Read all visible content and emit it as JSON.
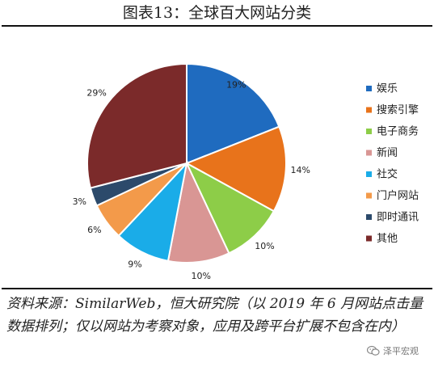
{
  "header": {
    "title": "图表13：全球百大网站分类"
  },
  "chart_data": {
    "type": "pie",
    "title": "图表13：全球百大网站分类",
    "slices": [
      {
        "label": "娱乐",
        "value": 19,
        "color": "#1f6bbf"
      },
      {
        "label": "搜索引擎",
        "value": 14,
        "color": "#e8731b"
      },
      {
        "label": "电子商务",
        "value": 10,
        "color": "#8dcd48"
      },
      {
        "label": "新闻",
        "value": 10,
        "color": "#d99694"
      },
      {
        "label": "社交",
        "value": 9,
        "color": "#1aace8"
      },
      {
        "label": "门户网站",
        "value": 6,
        "color": "#f39a4a"
      },
      {
        "label": "即时通讯",
        "value": 3,
        "color": "#2c4a6b"
      },
      {
        "label": "其他",
        "value": 29,
        "color": "#7b2a2a"
      }
    ],
    "value_suffix": "%",
    "legend_position": "right",
    "start": "top, clockwise"
  },
  "footer": {
    "source": "资料来源：SimilarWeb，恒大研究院（以 2019 年 6 月网站点击量数据排列；仅以网站为考察对象，应用及跨平台扩展不包含在内）",
    "watermark": "泽平宏观"
  }
}
